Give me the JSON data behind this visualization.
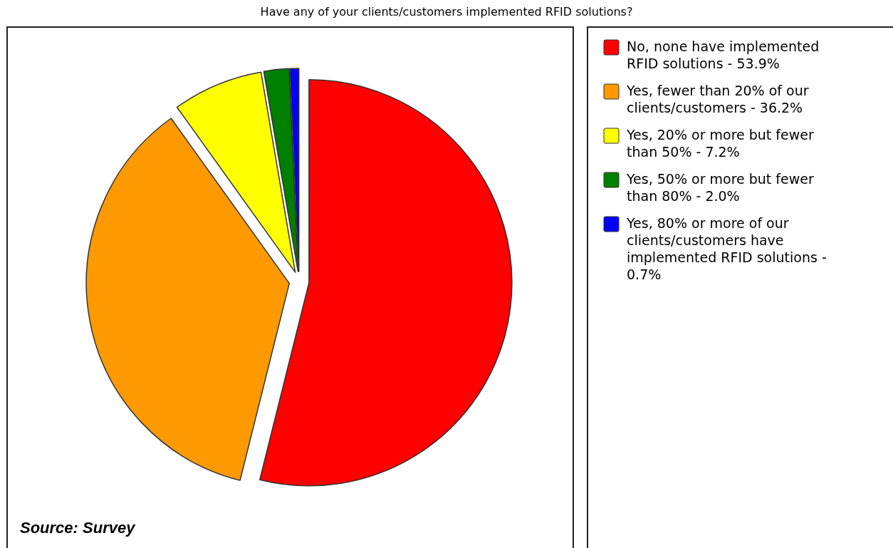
{
  "chart_data": {
    "type": "pie",
    "title": "Have any of your clients/customers implemented RFID solutions?",
    "categories": [
      "No, none have implemented RFID solutions - 53.9%",
      "Yes, fewer than 20% of our clients/customers - 36.2%",
      "Yes, 20% or more but fewer than 50% - 7.2%",
      "Yes, 50% or more but fewer than 80% - 2.0%",
      "Yes, 80% or more of our clients/customers have implemented RFID solutions - 0.7%"
    ],
    "values": [
      53.9,
      36.2,
      7.2,
      2.0,
      0.7
    ],
    "colors": [
      "#ff0000",
      "#ff9900",
      "#ffff00",
      "#008000",
      "#0000ff"
    ],
    "legend": "right",
    "annotations": [
      "Source: Survey"
    ]
  }
}
